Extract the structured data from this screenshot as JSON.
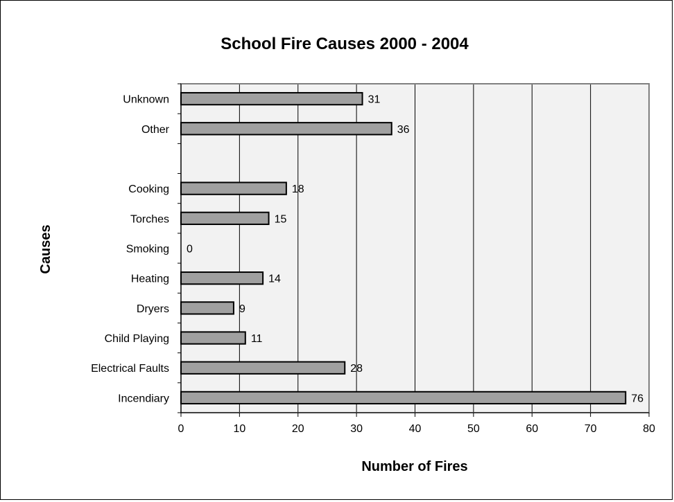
{
  "chart_data": {
    "type": "bar",
    "orientation": "horizontal",
    "title": "School Fire Causes 2000 - 2004",
    "xlabel": "Number of Fires",
    "ylabel": "Causes",
    "categories": [
      "Incendiary",
      "Electrical Faults",
      "Child Playing",
      "Dryers",
      "Heating",
      "Smoking",
      "Torches",
      "Cooking",
      "",
      "Other",
      "Unknown"
    ],
    "values": [
      76,
      28,
      11,
      9,
      14,
      0,
      15,
      18,
      null,
      36,
      31
    ],
    "data_labels": [
      "76",
      "28",
      "11",
      "9",
      "14",
      "0",
      "15",
      "18",
      "",
      "36",
      "31"
    ],
    "xlim": [
      0,
      80
    ],
    "xticks": [
      0,
      10,
      20,
      30,
      40,
      50,
      60,
      70,
      80
    ],
    "grid": "vertical",
    "legend": "none",
    "colors": {
      "bar_fill": "#a0a0a0",
      "bar_stroke": "#000000",
      "plot_background": "#f2f2f2",
      "grid": "#000000",
      "plot_border": "#808080"
    }
  }
}
